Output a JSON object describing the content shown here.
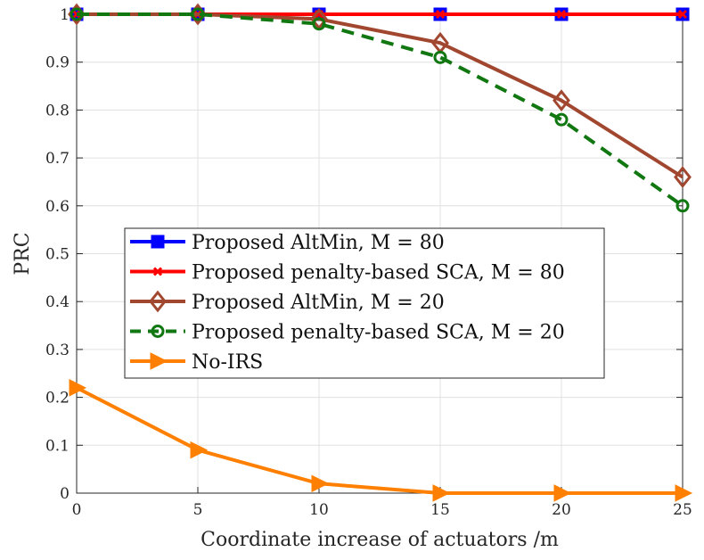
{
  "chart_data": {
    "type": "line",
    "title": "",
    "xlabel": "Coordinate increase of actuators /m",
    "ylabel": "PRC",
    "x": [
      0,
      5,
      10,
      15,
      20,
      25
    ],
    "xlim": [
      0,
      25
    ],
    "ylim": [
      0,
      1
    ],
    "xticks": [
      "0",
      "5",
      "10",
      "15",
      "20",
      "25"
    ],
    "yticks": [
      "0",
      "0.1",
      "0.2",
      "0.3",
      "0.4",
      "0.5",
      "0.6",
      "0.7",
      "0.8",
      "0.9",
      "1"
    ],
    "grid": true,
    "legend_placement": "center-left",
    "series": [
      {
        "name": "Proposed AltMin, M = 80",
        "values": [
          1,
          1,
          1,
          1,
          1,
          1
        ],
        "color": "#0000ff",
        "marker": "square",
        "dash": "solid"
      },
      {
        "name": "Proposed penalty-based SCA, M = 80",
        "values": [
          1,
          1,
          1,
          1,
          1,
          1
        ],
        "color": "#ff0000",
        "marker": "x",
        "dash": "solid"
      },
      {
        "name": "Proposed AltMin, M = 20",
        "values": [
          1,
          1,
          0.99,
          0.94,
          0.82,
          0.66
        ],
        "color": "#a2472f",
        "marker": "diamond",
        "dash": "solid"
      },
      {
        "name": "Proposed penalty-based SCA, M = 20",
        "values": [
          1,
          1,
          0.98,
          0.91,
          0.78,
          0.6
        ],
        "color": "#117711",
        "marker": "circle",
        "dash": "dashed"
      },
      {
        "name": "No-IRS",
        "values": [
          0.22,
          0.09,
          0.02,
          0,
          0,
          0
        ],
        "color": "#ff8000",
        "marker": "triangle-right",
        "dash": "solid"
      }
    ]
  }
}
